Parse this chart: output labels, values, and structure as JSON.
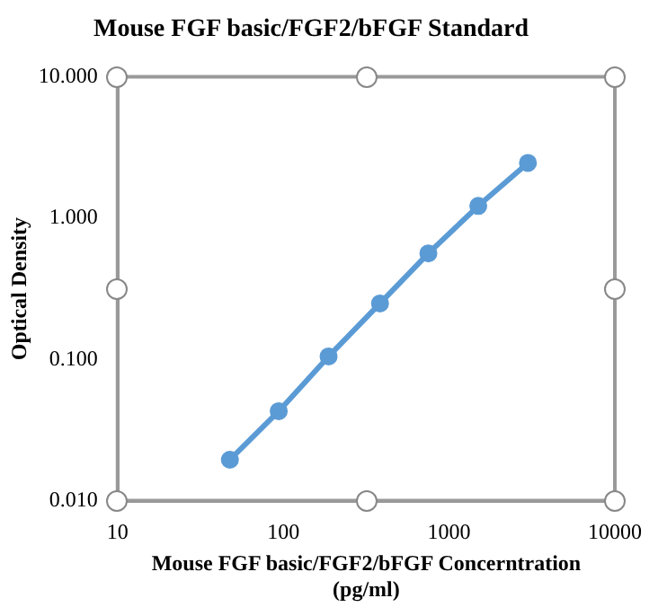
{
  "chart_data": {
    "type": "line",
    "title": "Mouse FGF basic/FGF2/bFGF Standard",
    "xlabel": "Mouse FGF basic/FGF2/bFGF Concerntration (pg/ml)",
    "ylabel": "Optical Density",
    "x": [
      47.6,
      93.8,
      187.5,
      383,
      750,
      1500,
      2990
    ],
    "series": [
      {
        "color": "#5b9bd5",
        "values": [
          0.0195,
          0.043,
          0.105,
          0.249,
          0.563,
          1.22,
          2.46
        ]
      }
    ],
    "log": "xy",
    "xlim": [
      10,
      10000
    ],
    "xticks": [
      10,
      100,
      1000,
      10000
    ],
    "ylim": [
      0.01,
      10
    ],
    "yticks": [
      {
        "value": 0.01,
        "label": "0.010"
      },
      {
        "value": 0.1,
        "label": "0.100"
      },
      {
        "value": 1,
        "label": "1.000"
      },
      {
        "value": 10,
        "label": "10.000"
      }
    ],
    "grid": false,
    "legend": false,
    "marker": "circle",
    "line_style": "solid"
  }
}
